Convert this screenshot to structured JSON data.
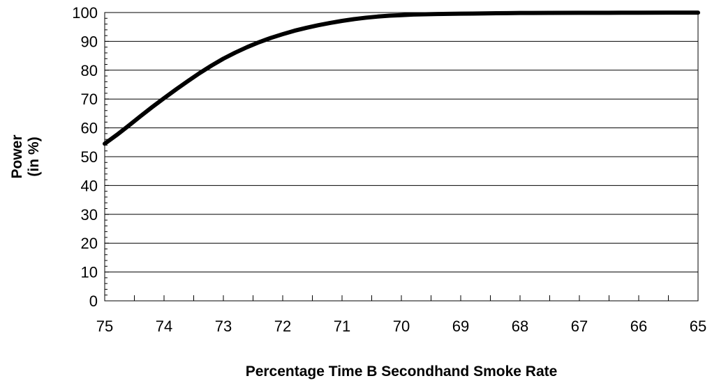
{
  "chart_data": {
    "type": "line",
    "title": "",
    "xlabel": "Percentage Time B Secondhand Smoke Rate",
    "ylabel_lines": [
      "Power",
      "(in %)"
    ],
    "x_reversed": true,
    "xlim": [
      75,
      65
    ],
    "ylim": [
      0,
      100
    ],
    "x_ticks": [
      "75",
      "74",
      "73",
      "72",
      "71",
      "70",
      "69",
      "68",
      "67",
      "66",
      "65"
    ],
    "y_ticks": [
      "0",
      "10",
      "20",
      "30",
      "40",
      "50",
      "60",
      "70",
      "80",
      "90",
      "100"
    ],
    "grid": "horizontal",
    "legend": "none",
    "series": [
      {
        "color": "#000000",
        "x": [
          75,
          74.8,
          74.6,
          74.4,
          74.2,
          74,
          73.8,
          73.6,
          73.4,
          73.2,
          73,
          72.8,
          72.6,
          72.4,
          72.2,
          72,
          71.8,
          71.6,
          71.4,
          71.2,
          71,
          70.8,
          70.6,
          70.4,
          70.2,
          70,
          69.8,
          69.6,
          69.4,
          69.2,
          69,
          68.8,
          68.6,
          68.4,
          68.2,
          68,
          67.5,
          67,
          66.5,
          66,
          65.5,
          65
        ],
        "y": [
          54.5,
          57.5,
          60.7,
          64.0,
          67.2,
          70.3,
          73.3,
          76.2,
          79.0,
          81.6,
          84.0,
          86.1,
          88.0,
          89.7,
          91.2,
          92.5,
          93.7,
          94.7,
          95.6,
          96.4,
          97.1,
          97.7,
          98.2,
          98.6,
          98.9,
          99.1,
          99.3,
          99.4,
          99.5,
          99.55,
          99.6,
          99.65,
          99.7,
          99.75,
          99.8,
          99.85,
          99.88,
          99.9,
          99.92,
          99.94,
          99.96,
          99.98
        ]
      }
    ]
  }
}
